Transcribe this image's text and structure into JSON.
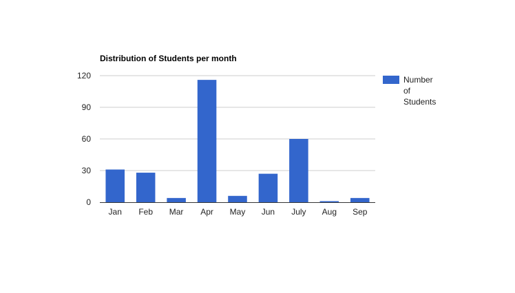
{
  "chart_data": {
    "type": "bar",
    "title": "Distribution of Students per month",
    "xlabel": "",
    "ylabel": "",
    "categories": [
      "Jan",
      "Feb",
      "Mar",
      "Apr",
      "May",
      "Jun",
      "July",
      "Aug",
      "Sep"
    ],
    "series": [
      {
        "name": "Number of Students",
        "values": [
          31,
          28,
          4,
          116,
          6,
          27,
          60,
          1,
          4
        ],
        "color": "#3366cc"
      }
    ],
    "ylim": [
      0,
      120
    ],
    "yticks": [
      "0",
      "30",
      "60",
      "90",
      "120"
    ],
    "grid": true,
    "legend": {
      "placement": "right",
      "lines": [
        "Number",
        "of",
        "Students"
      ]
    }
  }
}
